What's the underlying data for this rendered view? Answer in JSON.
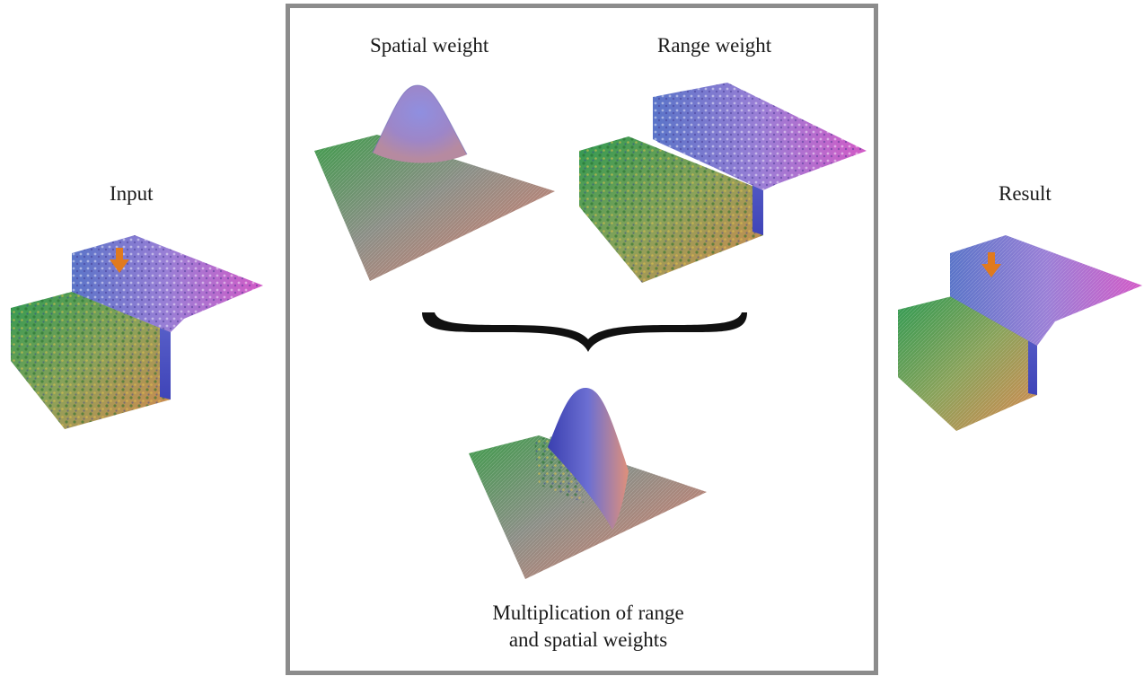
{
  "labels": {
    "input": "Input",
    "result": "Result",
    "spatial_weight": "Spatial weight",
    "range_weight": "Range weight",
    "caption_line1": "Multiplication of range",
    "caption_line2": "and spatial weights"
  },
  "colors": {
    "frame": "#8c8c8c",
    "arrow": "#e07a1e",
    "brace": "#111111",
    "surface_green": "#3fa04a",
    "surface_blue": "#5a5fcf",
    "surface_magenta": "#d055c8",
    "surface_orange": "#d98a4a"
  },
  "icons": {
    "pixel_marker": "down-arrow-icon",
    "combine": "curly-brace-icon"
  }
}
